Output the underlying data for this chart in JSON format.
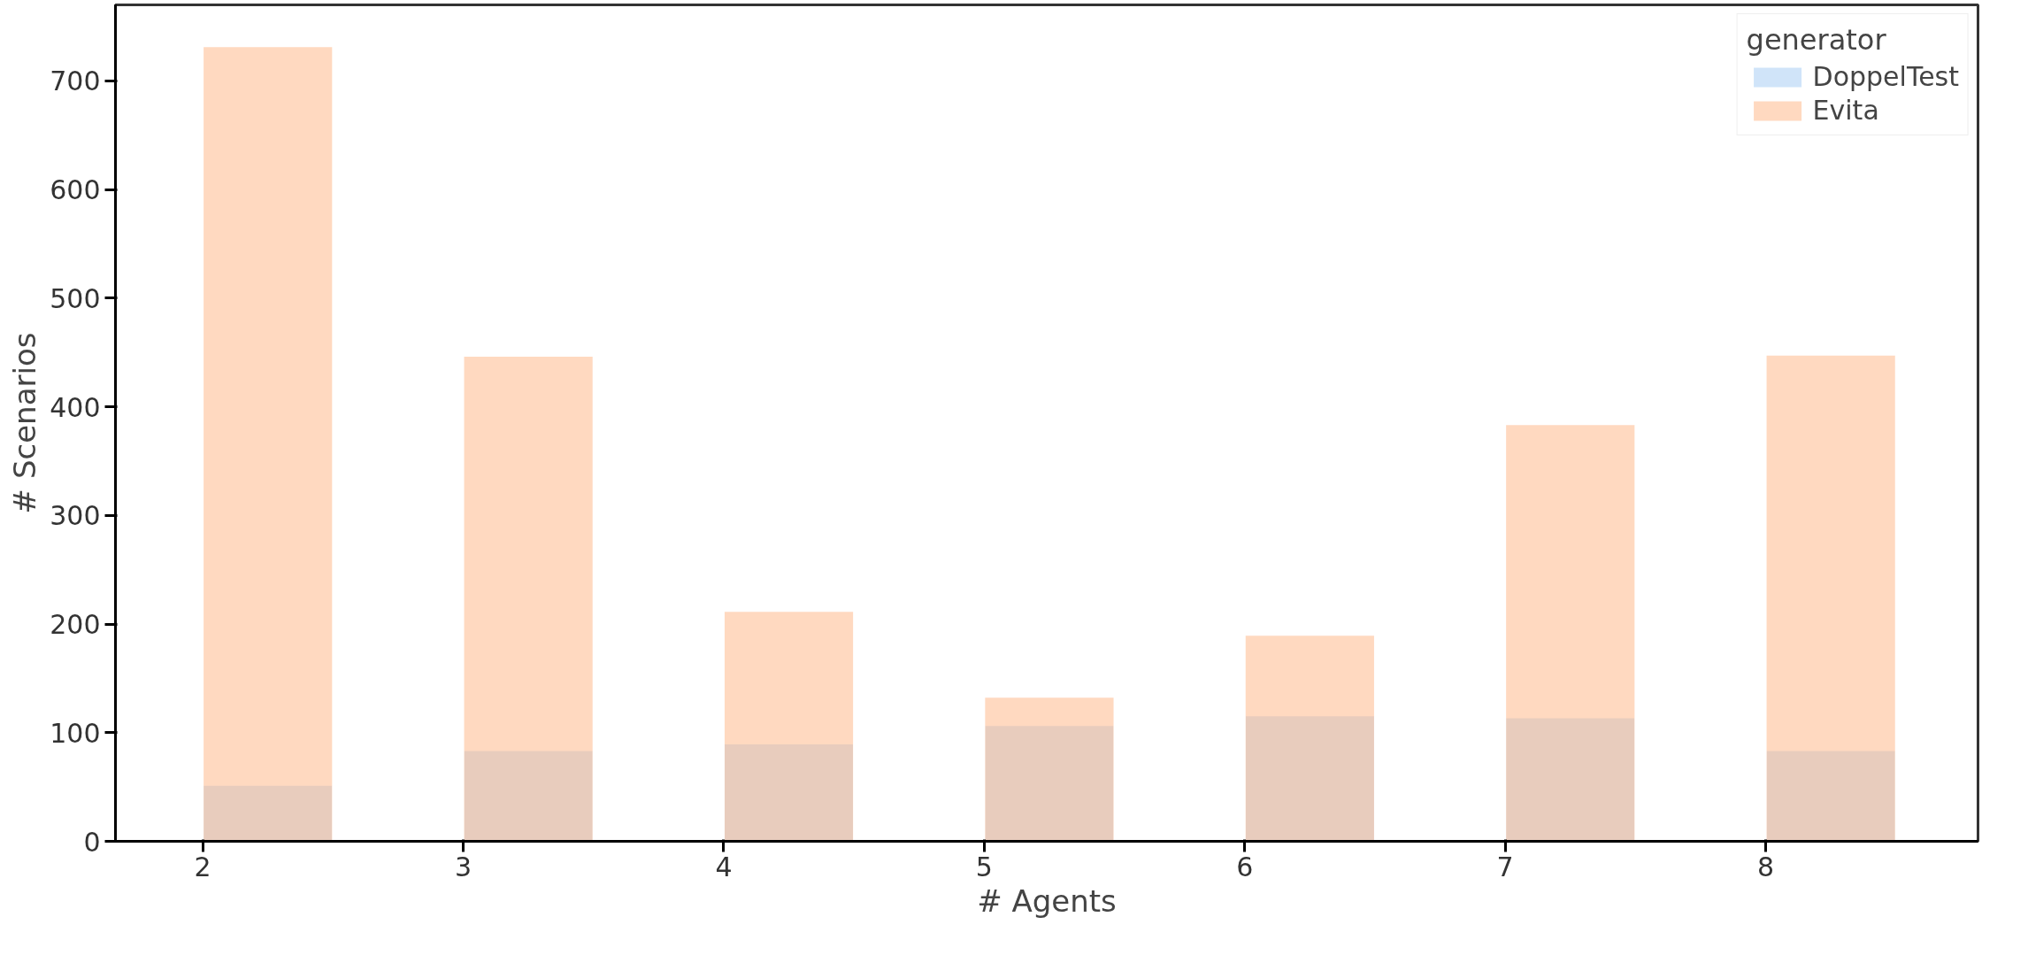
{
  "chart_data": {
    "type": "histogram",
    "xlabel": "# Agents",
    "ylabel": "# Scenarios",
    "legend_title": "generator",
    "legend": "top right",
    "grid": false,
    "bins": [
      2,
      2.5,
      3,
      3.5,
      4,
      4.5,
      5,
      5.5,
      6,
      6.5,
      7,
      7.5,
      8,
      8.5
    ],
    "series": [
      {
        "name": "DoppelTest",
        "color": "#a1c9f4",
        "values": [
          52,
          0,
          84,
          0,
          90,
          0,
          107,
          0,
          116,
          0,
          114,
          0,
          84
        ]
      },
      {
        "name": "Evita",
        "color": "#ffb482",
        "values": [
          732,
          0,
          447,
          0,
          212,
          0,
          133,
          0,
          190,
          0,
          384,
          0,
          448
        ]
      }
    ],
    "xlim": [
      1.665,
      8.815
    ],
    "xticks": [
      2,
      3,
      4,
      5,
      6,
      7,
      8
    ],
    "ylim": [
      0,
      770
    ],
    "yticks": [
      0,
      100,
      200,
      300,
      400,
      500,
      600,
      700
    ]
  }
}
